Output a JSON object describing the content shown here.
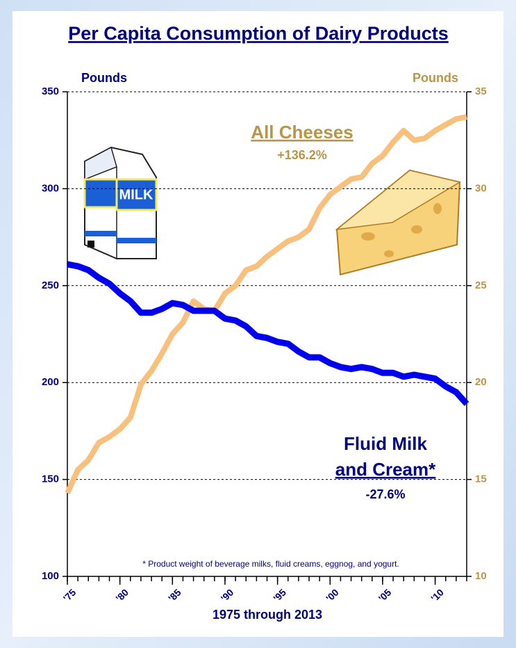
{
  "chart_data": {
    "type": "line",
    "title": "Per Capita Consumption of Dairy Products",
    "y_label": "Pounds",
    "y2_label": "Pounds",
    "x_label": "1975 through 2013",
    "footnote": "* Product weight of beverage milks, fluid creams, eggnog, and yogurt.",
    "annotations": [
      {
        "text": "All Cheeses",
        "color": "#b8954a"
      },
      {
        "text": "+136.2%",
        "color": "#b8954a"
      },
      {
        "text": "Fluid Milk",
        "color": "#000080"
      },
      {
        "text": "and Cream*",
        "color": "#000080"
      },
      {
        "text": "-27.6%",
        "color": "#000080"
      }
    ],
    "carton_label": "MILK",
    "x": [
      1975,
      1976,
      1977,
      1978,
      1979,
      1980,
      1981,
      1982,
      1983,
      1984,
      1985,
      1986,
      1987,
      1988,
      1989,
      1990,
      1991,
      1992,
      1993,
      1994,
      1995,
      1996,
      1997,
      1998,
      1999,
      2000,
      2001,
      2002,
      2003,
      2004,
      2005,
      2006,
      2007,
      2008,
      2009,
      2010,
      2011,
      2012,
      2013
    ],
    "xlim": [
      1975,
      2013
    ],
    "xticks": [
      {
        "value": 1975,
        "label": "'75"
      },
      {
        "value": 1980,
        "label": "'80"
      },
      {
        "value": 1985,
        "label": "'85"
      },
      {
        "value": 1990,
        "label": "'90"
      },
      {
        "value": 1995,
        "label": "'95"
      },
      {
        "value": 2000,
        "label": "'00"
      },
      {
        "value": 2005,
        "label": "'05"
      },
      {
        "value": 2010,
        "label": "'10"
      }
    ],
    "ylim": [
      100,
      350
    ],
    "yticks": [
      100,
      150,
      200,
      250,
      300,
      350
    ],
    "y2lim": [
      10,
      35
    ],
    "y2ticks": [
      10,
      15,
      20,
      25,
      30,
      35
    ],
    "grid": true,
    "series": [
      {
        "color": "#0000ee",
        "axis": "y",
        "values": [
          261,
          260,
          258,
          254,
          251,
          246,
          242,
          236,
          236,
          238,
          241,
          240,
          237,
          237,
          237,
          233,
          232,
          229,
          224,
          223,
          221,
          220,
          216,
          213,
          213,
          210,
          208,
          207,
          208,
          207,
          205,
          205,
          203,
          204,
          203,
          202,
          198,
          195,
          189
        ]
      },
      {
        "color": "#f8c07c",
        "axis": "y2",
        "values": [
          14.3,
          15.5,
          16.0,
          16.9,
          17.2,
          17.6,
          18.2,
          19.9,
          20.6,
          21.5,
          22.5,
          23.1,
          24.2,
          23.8,
          23.7,
          24.6,
          25.0,
          25.8,
          26.0,
          26.5,
          26.9,
          27.3,
          27.5,
          27.9,
          29.0,
          29.7,
          30.1,
          30.5,
          30.6,
          31.3,
          31.7,
          32.4,
          33.0,
          32.5,
          32.6,
          33.0,
          33.3,
          33.6,
          33.7
        ]
      }
    ]
  }
}
